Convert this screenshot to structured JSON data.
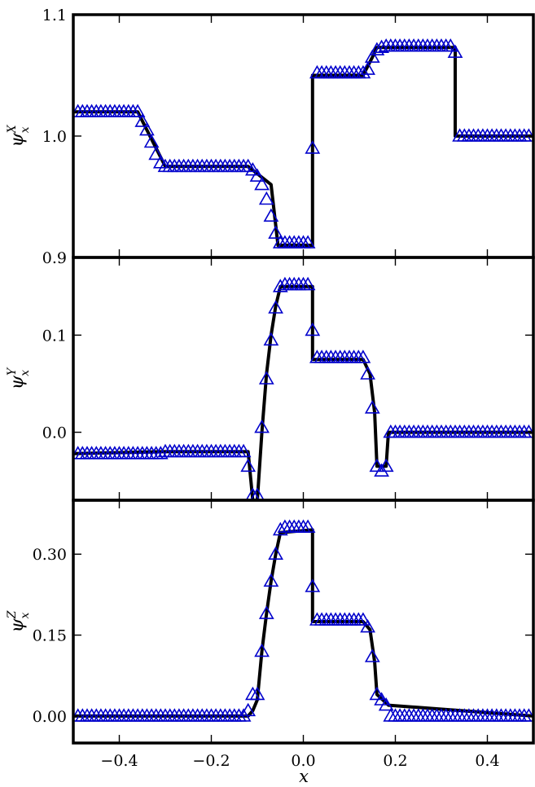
{
  "figure": {
    "xlabel": "x",
    "x_tick_labels": [
      "−0.4",
      "−0.2",
      "0.0",
      "0.2",
      "0.4"
    ],
    "x_ticks": [
      -0.4,
      -0.2,
      0.0,
      0.2,
      0.4
    ],
    "xlim": [
      -0.5,
      0.5
    ],
    "line_color": "#000000",
    "marker_color": "#0000cc",
    "marker": "open-triangle",
    "panels": [
      {
        "ylabel_main": "ψ",
        "ylabel_sub": "x",
        "ylabel_sup": "X",
        "ylim": [
          0.9,
          1.1
        ],
        "y_ticks": [
          0.9,
          1.0,
          1.1
        ],
        "y_tick_labels": [
          "0.9",
          "1.0",
          "1.1"
        ]
      },
      {
        "ylabel_main": "ψ",
        "ylabel_sub": "x",
        "ylabel_sup": "Y",
        "ylim": [
          -0.07,
          0.18
        ],
        "y_ticks": [
          0.0,
          0.1
        ],
        "y_tick_labels": [
          "0.0",
          "0.1"
        ]
      },
      {
        "ylabel_main": "ψ",
        "ylabel_sub": "x",
        "ylabel_sup": "Z",
        "ylim": [
          -0.05,
          0.4
        ],
        "y_ticks": [
          0.0,
          0.15,
          0.3
        ],
        "y_tick_labels": [
          "0.00",
          "0.15",
          "0.30"
        ]
      }
    ]
  },
  "chart_data": [
    {
      "type": "line",
      "xlabel": "x",
      "ylabel": "ψ_x^X",
      "xlim": [
        -0.5,
        0.5
      ],
      "ylim": [
        0.9,
        1.1
      ],
      "series": [
        {
          "style": "line",
          "x": [
            -0.5,
            -0.36,
            -0.3,
            -0.12,
            -0.07,
            -0.055,
            0.02,
            0.02,
            0.13,
            0.15,
            0.16,
            0.33,
            0.33,
            0.5
          ],
          "y": [
            1.02,
            1.02,
            0.975,
            0.975,
            0.96,
            0.91,
            0.91,
            1.05,
            1.05,
            1.065,
            1.073,
            1.073,
            1.0,
            1.0
          ]
        },
        {
          "style": "markers",
          "x": [
            -0.49,
            -0.48,
            -0.47,
            -0.46,
            -0.45,
            -0.44,
            -0.43,
            -0.42,
            -0.41,
            -0.4,
            -0.39,
            -0.38,
            -0.37,
            -0.36,
            -0.35,
            -0.34,
            -0.33,
            -0.32,
            -0.31,
            -0.3,
            -0.29,
            -0.28,
            -0.27,
            -0.26,
            -0.25,
            -0.24,
            -0.23,
            -0.22,
            -0.21,
            -0.2,
            -0.19,
            -0.18,
            -0.17,
            -0.16,
            -0.15,
            -0.14,
            -0.13,
            -0.12,
            -0.11,
            -0.1,
            -0.09,
            -0.08,
            -0.07,
            -0.06,
            -0.05,
            -0.04,
            -0.03,
            -0.02,
            -0.01,
            0.0,
            0.01,
            0.02,
            0.03,
            0.04,
            0.05,
            0.06,
            0.07,
            0.08,
            0.09,
            0.1,
            0.11,
            0.12,
            0.13,
            0.14,
            0.15,
            0.16,
            0.17,
            0.18,
            0.19,
            0.2,
            0.21,
            0.22,
            0.23,
            0.24,
            0.25,
            0.26,
            0.27,
            0.28,
            0.29,
            0.3,
            0.31,
            0.32,
            0.33,
            0.34,
            0.35,
            0.36,
            0.37,
            0.38,
            0.39,
            0.4,
            0.41,
            0.42,
            0.43,
            0.44,
            0.45,
            0.46,
            0.47,
            0.48,
            0.49
          ],
          "y": [
            1.02,
            1.02,
            1.02,
            1.02,
            1.02,
            1.02,
            1.02,
            1.02,
            1.02,
            1.02,
            1.02,
            1.02,
            1.02,
            1.02,
            1.012,
            1.005,
            0.995,
            0.985,
            0.978,
            0.975,
            0.975,
            0.975,
            0.975,
            0.975,
            0.975,
            0.975,
            0.975,
            0.975,
            0.975,
            0.975,
            0.975,
            0.975,
            0.975,
            0.975,
            0.975,
            0.975,
            0.975,
            0.975,
            0.972,
            0.967,
            0.96,
            0.948,
            0.934,
            0.92,
            0.912,
            0.912,
            0.912,
            0.912,
            0.912,
            0.912,
            0.912,
            0.99,
            1.052,
            1.052,
            1.052,
            1.052,
            1.052,
            1.052,
            1.052,
            1.052,
            1.052,
            1.052,
            1.052,
            1.055,
            1.065,
            1.071,
            1.073,
            1.074,
            1.074,
            1.074,
            1.074,
            1.074,
            1.074,
            1.074,
            1.074,
            1.074,
            1.074,
            1.074,
            1.074,
            1.074,
            1.074,
            1.074,
            1.069,
            1.0,
            1.0,
            1.0,
            1.0,
            1.0,
            1.0,
            1.0,
            1.0,
            1.0,
            1.0,
            1.0,
            1.0,
            1.0,
            1.0,
            1.0,
            1.0
          ]
        }
      ]
    },
    {
      "type": "line",
      "xlabel": "x",
      "ylabel": "ψ_x^Y",
      "xlim": [
        -0.5,
        0.5
      ],
      "ylim": [
        -0.07,
        0.18
      ],
      "series": [
        {
          "style": "line",
          "x": [
            -0.5,
            -0.3,
            -0.12,
            -0.11,
            -0.1,
            -0.09,
            -0.08,
            -0.07,
            -0.06,
            -0.05,
            0.02,
            0.02,
            0.13,
            0.145,
            0.155,
            0.16,
            0.18,
            0.185,
            0.5
          ],
          "y": [
            -0.022,
            -0.02,
            -0.02,
            -0.07,
            -0.07,
            0.0,
            0.06,
            0.1,
            0.13,
            0.15,
            0.15,
            0.075,
            0.075,
            0.06,
            0.02,
            -0.035,
            -0.035,
            0.0,
            0.0
          ]
        },
        {
          "style": "markers",
          "x": [
            -0.49,
            -0.48,
            -0.47,
            -0.46,
            -0.45,
            -0.44,
            -0.43,
            -0.42,
            -0.41,
            -0.4,
            -0.39,
            -0.38,
            -0.37,
            -0.36,
            -0.35,
            -0.34,
            -0.33,
            -0.32,
            -0.31,
            -0.3,
            -0.29,
            -0.28,
            -0.27,
            -0.26,
            -0.25,
            -0.24,
            -0.23,
            -0.22,
            -0.21,
            -0.2,
            -0.19,
            -0.18,
            -0.17,
            -0.16,
            -0.15,
            -0.14,
            -0.13,
            -0.12,
            -0.11,
            -0.1,
            -0.09,
            -0.08,
            -0.07,
            -0.06,
            -0.05,
            -0.04,
            -0.03,
            -0.02,
            -0.01,
            0.0,
            0.01,
            0.02,
            0.03,
            0.04,
            0.05,
            0.06,
            0.07,
            0.08,
            0.09,
            0.1,
            0.11,
            0.12,
            0.13,
            0.14,
            0.15,
            0.16,
            0.17,
            0.18,
            0.19,
            0.2,
            0.21,
            0.22,
            0.23,
            0.24,
            0.25,
            0.26,
            0.27,
            0.28,
            0.29,
            0.3,
            0.31,
            0.32,
            0.33,
            0.34,
            0.35,
            0.36,
            0.37,
            0.38,
            0.39,
            0.4,
            0.41,
            0.42,
            0.43,
            0.44,
            0.45,
            0.46,
            0.47,
            0.48,
            0.49
          ],
          "y": [
            -0.022,
            -0.022,
            -0.022,
            -0.022,
            -0.022,
            -0.022,
            -0.022,
            -0.022,
            -0.022,
            -0.022,
            -0.022,
            -0.022,
            -0.022,
            -0.022,
            -0.022,
            -0.022,
            -0.022,
            -0.022,
            -0.022,
            -0.02,
            -0.02,
            -0.02,
            -0.02,
            -0.02,
            -0.02,
            -0.02,
            -0.02,
            -0.02,
            -0.02,
            -0.02,
            -0.02,
            -0.02,
            -0.02,
            -0.02,
            -0.02,
            -0.02,
            -0.02,
            -0.035,
            -0.065,
            -0.065,
            0.005,
            0.055,
            0.095,
            0.128,
            0.15,
            0.152,
            0.152,
            0.152,
            0.152,
            0.152,
            0.152,
            0.105,
            0.077,
            0.077,
            0.077,
            0.077,
            0.077,
            0.077,
            0.077,
            0.077,
            0.077,
            0.077,
            0.077,
            0.06,
            0.025,
            -0.035,
            -0.04,
            -0.035,
            0.0,
            0.0,
            0.0,
            0.0,
            0.0,
            0.0,
            0.0,
            0.0,
            0.0,
            0.0,
            0.0,
            0.0,
            0.0,
            0.0,
            0.0,
            0.0,
            0.0,
            0.0,
            0.0,
            0.0,
            0.0,
            0.0,
            0.0,
            0.0,
            0.0,
            0.0,
            0.0,
            0.0,
            0.0,
            0.0,
            0.0
          ]
        }
      ]
    },
    {
      "type": "line",
      "xlabel": "x",
      "ylabel": "ψ_x^Z",
      "xlim": [
        -0.5,
        0.5
      ],
      "ylim": [
        -0.05,
        0.4
      ],
      "series": [
        {
          "style": "line",
          "x": [
            -0.5,
            -0.12,
            -0.11,
            -0.1,
            -0.09,
            -0.08,
            -0.07,
            -0.06,
            -0.05,
            0.02,
            0.02,
            0.13,
            0.145,
            0.155,
            0.16,
            0.185,
            0.5
          ],
          "y": [
            0.0,
            0.0,
            0.01,
            0.03,
            0.12,
            0.19,
            0.25,
            0.3,
            0.34,
            0.345,
            0.175,
            0.175,
            0.16,
            0.1,
            0.04,
            0.02,
            0.0
          ]
        },
        {
          "style": "markers",
          "x": [
            -0.49,
            -0.48,
            -0.47,
            -0.46,
            -0.45,
            -0.44,
            -0.43,
            -0.42,
            -0.41,
            -0.4,
            -0.39,
            -0.38,
            -0.37,
            -0.36,
            -0.35,
            -0.34,
            -0.33,
            -0.32,
            -0.31,
            -0.3,
            -0.29,
            -0.28,
            -0.27,
            -0.26,
            -0.25,
            -0.24,
            -0.23,
            -0.22,
            -0.21,
            -0.2,
            -0.19,
            -0.18,
            -0.17,
            -0.16,
            -0.15,
            -0.14,
            -0.13,
            -0.12,
            -0.11,
            -0.1,
            -0.09,
            -0.08,
            -0.07,
            -0.06,
            -0.05,
            -0.04,
            -0.03,
            -0.02,
            -0.01,
            0.0,
            0.01,
            0.02,
            0.03,
            0.04,
            0.05,
            0.06,
            0.07,
            0.08,
            0.09,
            0.1,
            0.11,
            0.12,
            0.13,
            0.14,
            0.15,
            0.16,
            0.17,
            0.18,
            0.19,
            0.2,
            0.21,
            0.22,
            0.23,
            0.24,
            0.25,
            0.26,
            0.27,
            0.28,
            0.29,
            0.3,
            0.31,
            0.32,
            0.33,
            0.34,
            0.35,
            0.36,
            0.37,
            0.38,
            0.39,
            0.4,
            0.41,
            0.42,
            0.43,
            0.44,
            0.45,
            0.46,
            0.47,
            0.48,
            0.49
          ],
          "y": [
            0.0,
            0.0,
            0.0,
            0.0,
            0.0,
            0.0,
            0.0,
            0.0,
            0.0,
            0.0,
            0.0,
            0.0,
            0.0,
            0.0,
            0.0,
            0.0,
            0.0,
            0.0,
            0.0,
            0.0,
            0.0,
            0.0,
            0.0,
            0.0,
            0.0,
            0.0,
            0.0,
            0.0,
            0.0,
            0.0,
            0.0,
            0.0,
            0.0,
            0.0,
            0.0,
            0.0,
            0.0,
            0.01,
            0.04,
            0.04,
            0.12,
            0.19,
            0.25,
            0.3,
            0.345,
            0.35,
            0.35,
            0.35,
            0.35,
            0.35,
            0.35,
            0.24,
            0.178,
            0.178,
            0.178,
            0.178,
            0.178,
            0.178,
            0.178,
            0.178,
            0.178,
            0.178,
            0.178,
            0.165,
            0.11,
            0.04,
            0.03,
            0.02,
            0.0,
            0.0,
            0.0,
            0.0,
            0.0,
            0.0,
            0.0,
            0.0,
            0.0,
            0.0,
            0.0,
            0.0,
            0.0,
            0.0,
            0.0,
            0.0,
            0.0,
            0.0,
            0.0,
            0.0,
            0.0,
            0.0,
            0.0,
            0.0,
            0.0,
            0.0,
            0.0,
            0.0,
            0.0,
            0.0,
            0.0
          ]
        }
      ]
    }
  ]
}
